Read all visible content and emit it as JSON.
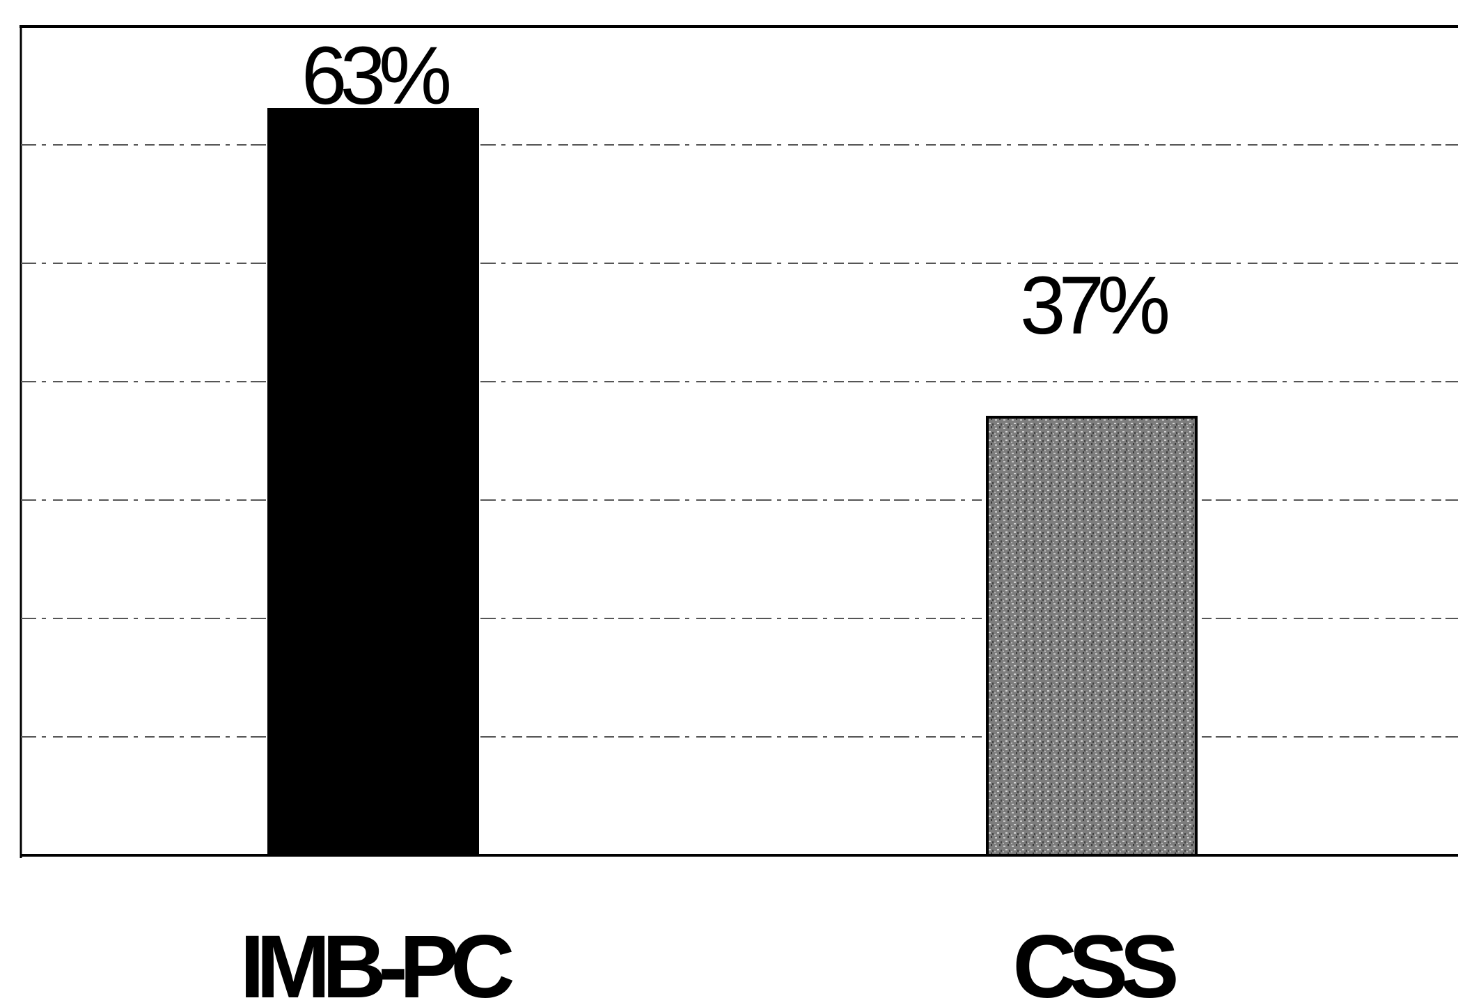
{
  "chart_data": {
    "type": "bar",
    "categories": [
      "IMB-PC",
      "CSS"
    ],
    "values": [
      63,
      37
    ],
    "data_labels": [
      "63%",
      "37%"
    ],
    "ylim": [
      0,
      70
    ],
    "grid": true,
    "colors": [
      "#000000",
      "#8a8a8a"
    ]
  }
}
